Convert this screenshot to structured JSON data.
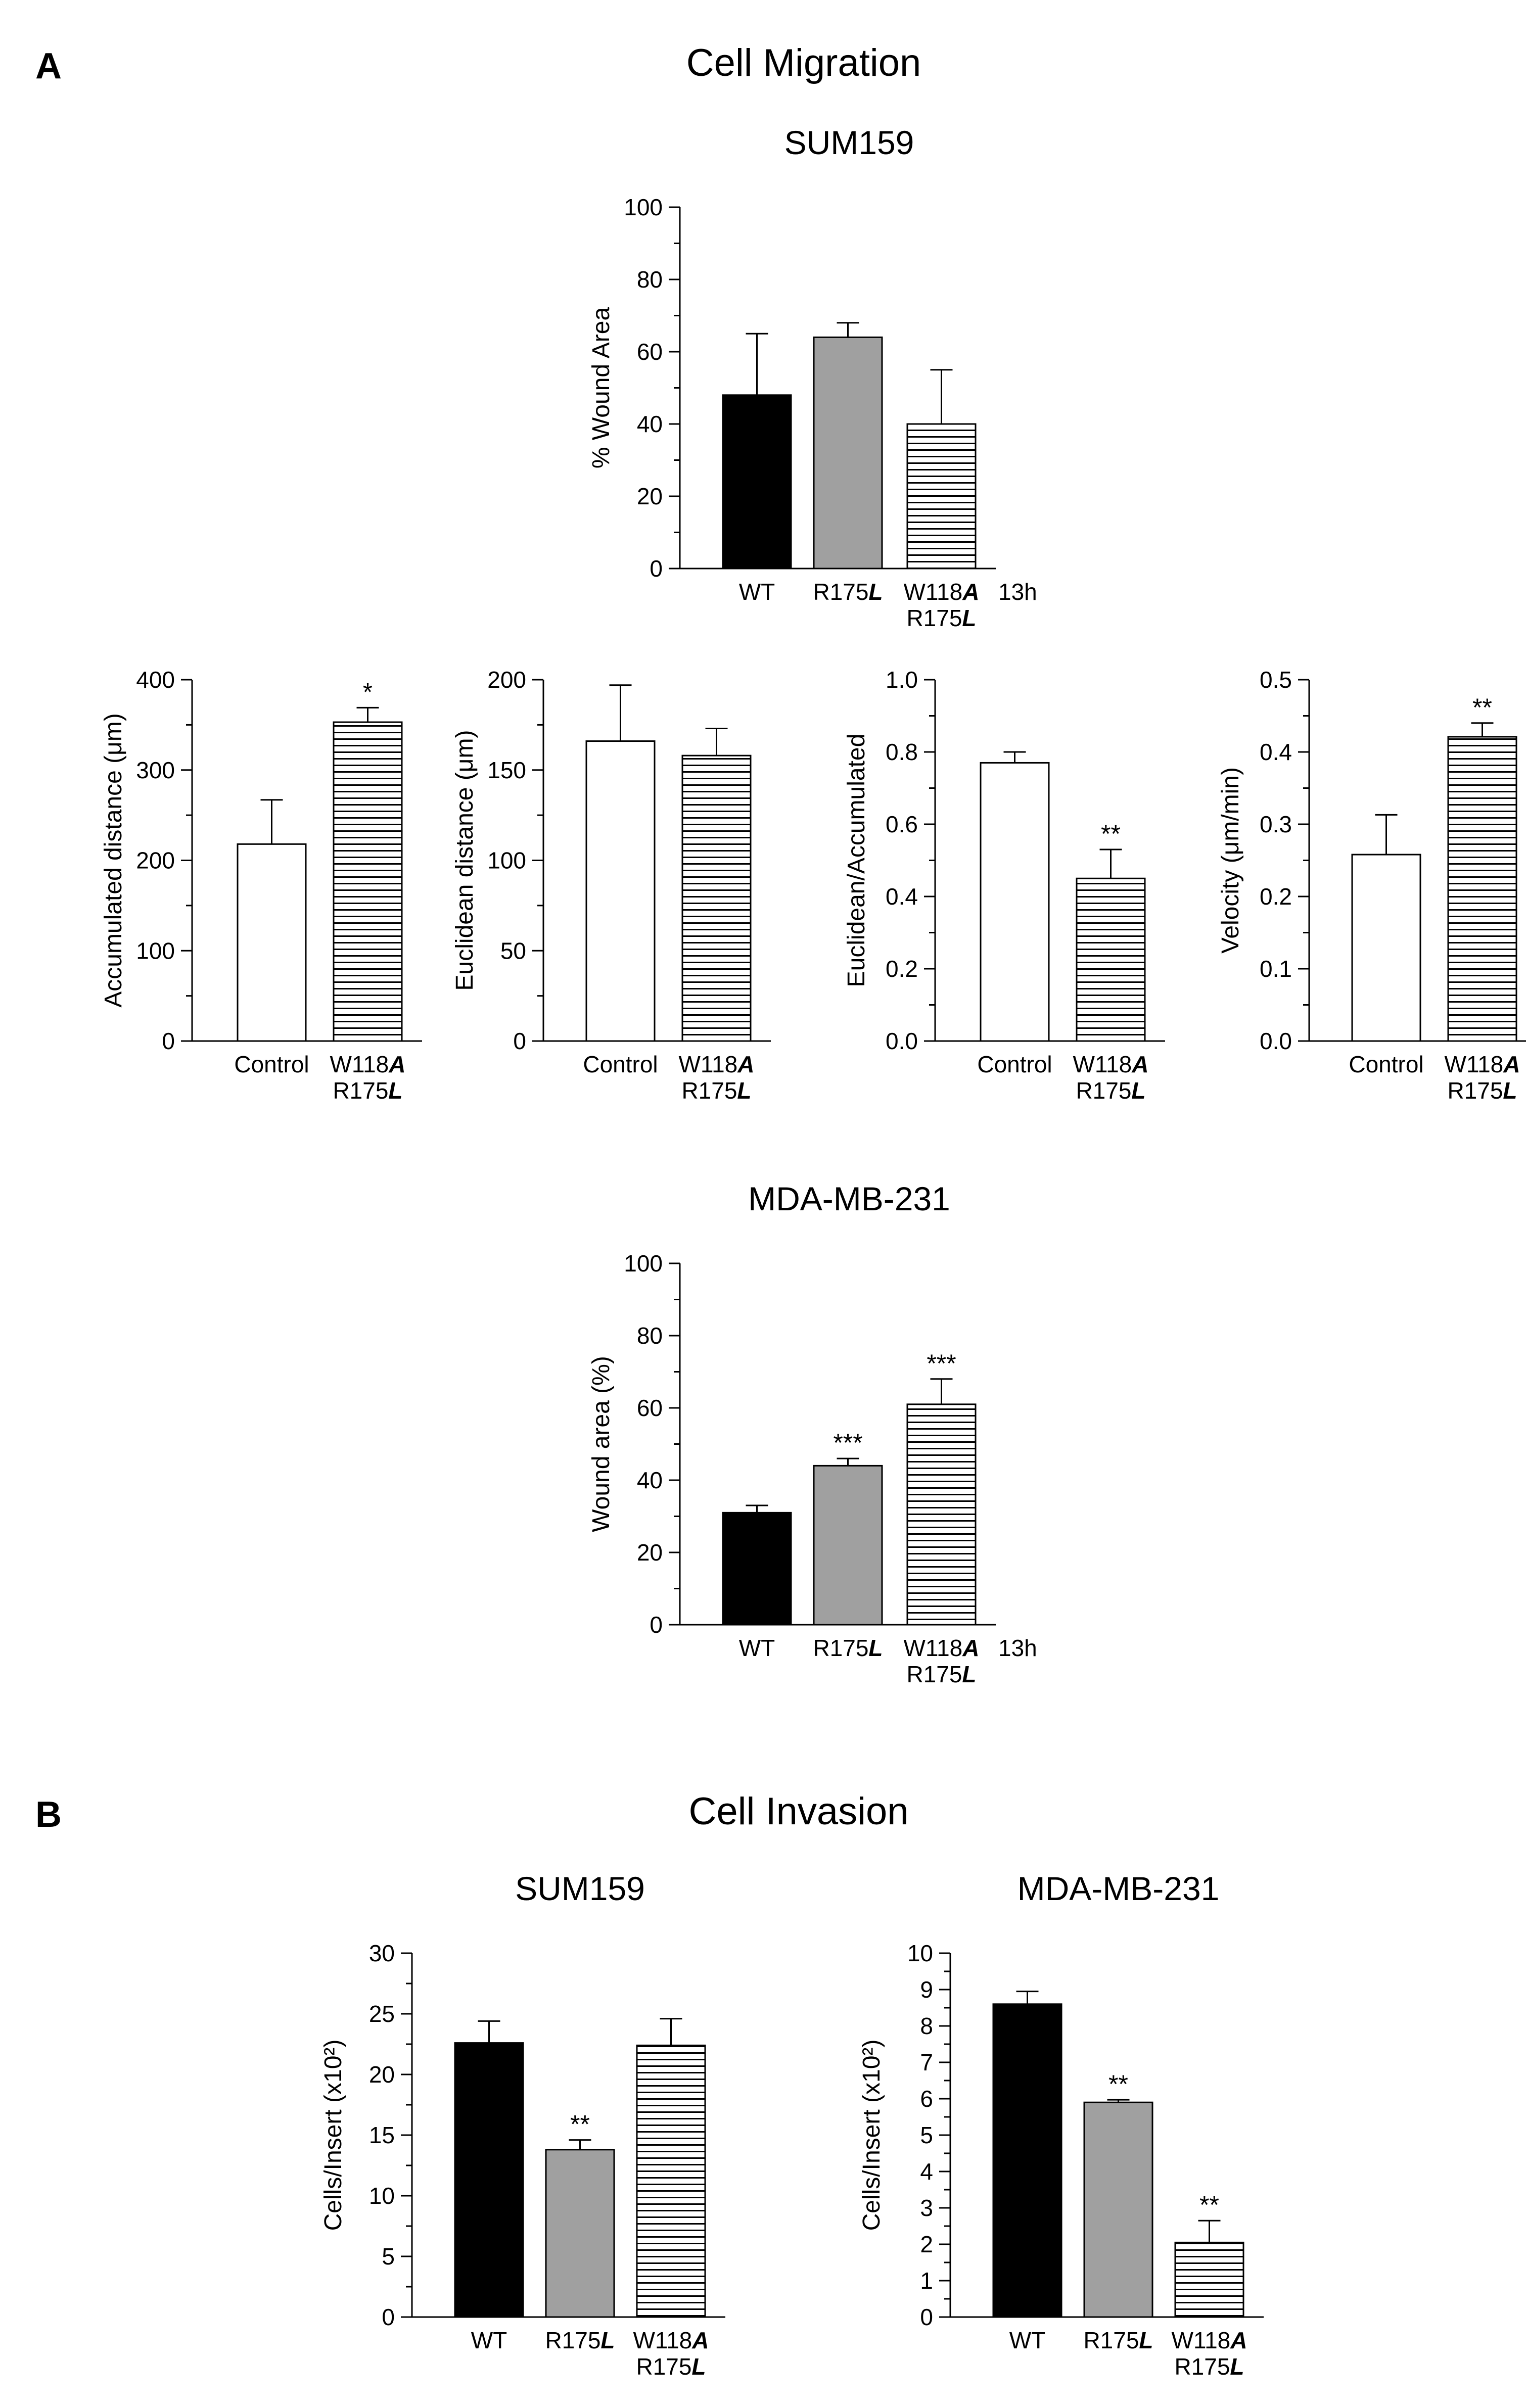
{
  "figure": {
    "panel_a": "A",
    "panel_b": "B",
    "title_a": "Cell Migration",
    "title_b": "Cell Invasion"
  },
  "colors": {
    "wt": "#000000",
    "r175l": "#a0a0a0",
    "double": "hatched",
    "control": "#ffffff"
  },
  "chart_data": [
    {
      "id": "sum159_wound",
      "type": "bar",
      "title": "SUM159",
      "ylabel": "% Wound Area",
      "ylim": [
        0,
        100
      ],
      "yticks": [
        "0",
        "20",
        "40",
        "60",
        "80",
        "100"
      ],
      "categories": [
        [
          "WT"
        ],
        [
          "R175",
          "L"
        ],
        [
          "W118",
          "A",
          "R175",
          "L"
        ]
      ],
      "values": [
        48,
        64,
        40
      ],
      "errors": [
        17,
        4,
        15
      ],
      "fills": [
        "wt",
        "r175l",
        "double"
      ],
      "significance": [
        "",
        "",
        ""
      ],
      "timepoint": "13h"
    },
    {
      "id": "accumulated",
      "type": "bar",
      "title": "",
      "ylabel": "Accumulated distance (μm)",
      "ylim": [
        0,
        400
      ],
      "yticks": [
        "0",
        "100",
        "200",
        "300",
        "400"
      ],
      "categories": [
        [
          "Control"
        ],
        [
          "W118",
          "A",
          "R175",
          "L"
        ]
      ],
      "values": [
        218,
        353
      ],
      "errors": [
        49,
        16
      ],
      "fills": [
        "control",
        "double"
      ],
      "significance": [
        "",
        "*"
      ]
    },
    {
      "id": "euclidean",
      "type": "bar",
      "title": "",
      "ylabel": "Euclidean distance (μm)",
      "ylim": [
        0,
        200
      ],
      "yticks": [
        "0",
        "50",
        "100",
        "150",
        "200"
      ],
      "categories": [
        [
          "Control"
        ],
        [
          "W118",
          "A",
          "R175",
          "L"
        ]
      ],
      "values": [
        166,
        158
      ],
      "errors": [
        31,
        15
      ],
      "fills": [
        "control",
        "double"
      ],
      "significance": [
        "",
        ""
      ]
    },
    {
      "id": "ratio",
      "type": "bar",
      "title": "",
      "ylabel": "Euclidean/Accumulated",
      "ylim": [
        0,
        1.0
      ],
      "yticks": [
        "0.0",
        "0.2",
        "0.4",
        "0.6",
        "0.8",
        "1.0"
      ],
      "categories": [
        [
          "Control"
        ],
        [
          "W118",
          "A",
          "R175",
          "L"
        ]
      ],
      "values": [
        0.77,
        0.45
      ],
      "errors": [
        0.03,
        0.08
      ],
      "fills": [
        "control",
        "double"
      ],
      "significance": [
        "",
        "**"
      ]
    },
    {
      "id": "velocity",
      "type": "bar",
      "title": "",
      "ylabel": "Velocity (μm/min)",
      "ylim": [
        0,
        0.5
      ],
      "yticks": [
        "0.0",
        "0.1",
        "0.2",
        "0.3",
        "0.4",
        "0.5"
      ],
      "categories": [
        [
          "Control"
        ],
        [
          "W118",
          "A",
          "R175",
          "L"
        ]
      ],
      "values": [
        0.258,
        0.421
      ],
      "errors": [
        0.055,
        0.019
      ],
      "fills": [
        "control",
        "double"
      ],
      "significance": [
        "",
        "**"
      ]
    },
    {
      "id": "mda_wound",
      "type": "bar",
      "title": "MDA-MB-231",
      "ylabel": "Wound area (%)",
      "ylim": [
        0,
        100
      ],
      "yticks": [
        "0",
        "20",
        "40",
        "60",
        "80",
        "100"
      ],
      "categories": [
        [
          "WT"
        ],
        [
          "R175",
          "L"
        ],
        [
          "W118",
          "A",
          "R175",
          "L"
        ]
      ],
      "values": [
        31,
        44,
        61
      ],
      "errors": [
        2,
        2,
        7
      ],
      "fills": [
        "wt",
        "r175l",
        "double"
      ],
      "significance": [
        "",
        "***",
        "***"
      ],
      "timepoint": "13h"
    },
    {
      "id": "sum159_invasion",
      "type": "bar",
      "title": "SUM159",
      "ylabel": "Cells/Insert (x10²)",
      "ylim": [
        0,
        30
      ],
      "yticks": [
        "0",
        "5",
        "10",
        "15",
        "20",
        "25",
        "30"
      ],
      "categories": [
        [
          "WT"
        ],
        [
          "R175",
          "L"
        ],
        [
          "W118",
          "A",
          "R175",
          "L"
        ]
      ],
      "values": [
        22.6,
        13.8,
        22.4
      ],
      "errors": [
        1.8,
        0.8,
        2.2
      ],
      "fills": [
        "wt",
        "r175l",
        "double"
      ],
      "significance": [
        "",
        "**",
        ""
      ]
    },
    {
      "id": "mda_invasion",
      "type": "bar",
      "title": "MDA-MB-231",
      "ylabel": "Cells/Insert (x10²)",
      "ylim": [
        0,
        10
      ],
      "yticks": [
        "0",
        "1",
        "2",
        "3",
        "4",
        "5",
        "6",
        "7",
        "8",
        "9",
        "10"
      ],
      "categories": [
        [
          "WT"
        ],
        [
          "R175",
          "L"
        ],
        [
          "W118",
          "A",
          "R175",
          "L"
        ]
      ],
      "values": [
        8.6,
        5.9,
        2.05
      ],
      "errors": [
        0.35,
        0.07,
        0.6
      ],
      "fills": [
        "wt",
        "r175l",
        "double"
      ],
      "significance": [
        "",
        "**",
        "**"
      ]
    }
  ]
}
